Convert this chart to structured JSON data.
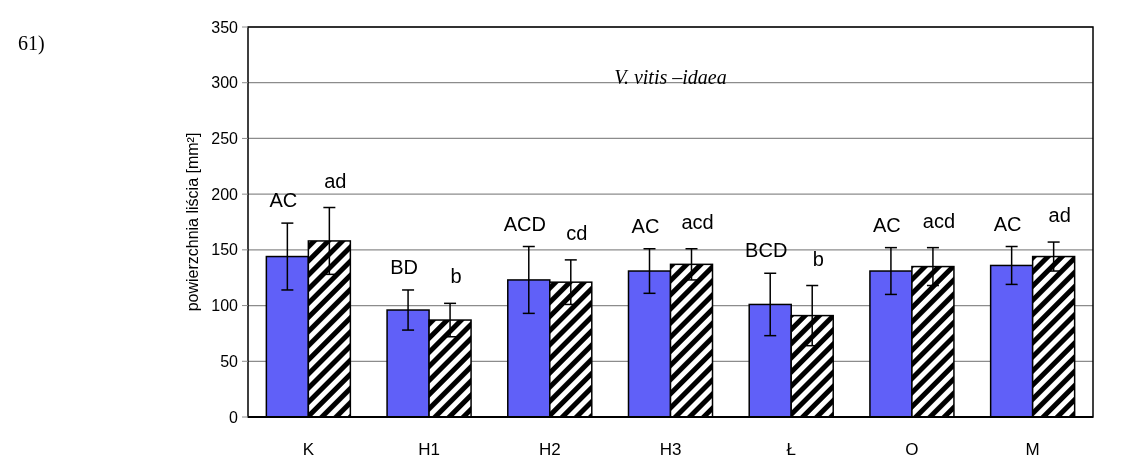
{
  "chart_data": {
    "type": "bar",
    "title": "V. vitis –idaea",
    "ylabel": "powierzchnia liścia [mm²]",
    "categories": [
      "K",
      "H1",
      "H2",
      "H3",
      "Ł",
      "O",
      "M"
    ],
    "series": [
      {
        "color": "#6060f8",
        "values": [
          144,
          96,
          123,
          131,
          101,
          131,
          136
        ],
        "errors": [
          [
            114,
            174
          ],
          [
            78,
            114
          ],
          [
            93,
            153
          ],
          [
            111,
            151
          ],
          [
            73,
            129
          ],
          [
            110,
            152
          ],
          [
            119,
            153
          ]
        ]
      },
      {
        "color": "#000000",
        "values": [
          158,
          87,
          121,
          137,
          91,
          135,
          144
        ],
        "errors": [
          [
            128,
            188
          ],
          [
            72,
            102
          ],
          [
            101,
            141
          ],
          [
            123,
            151
          ],
          [
            64,
            118
          ],
          [
            118,
            152
          ],
          [
            131,
            157
          ]
        ]
      }
    ],
    "ylim": [
      0,
      350
    ],
    "yticks": [
      0,
      50,
      100,
      150,
      200,
      250,
      300,
      350
    ],
    "grid": "y",
    "annotations": [
      "61)",
      "AC",
      "ad",
      "BD",
      "b",
      "ACD",
      "cd",
      "AC",
      "acd",
      "BCD",
      "b",
      "AC",
      "acd",
      "AC",
      "ad"
    ]
  }
}
